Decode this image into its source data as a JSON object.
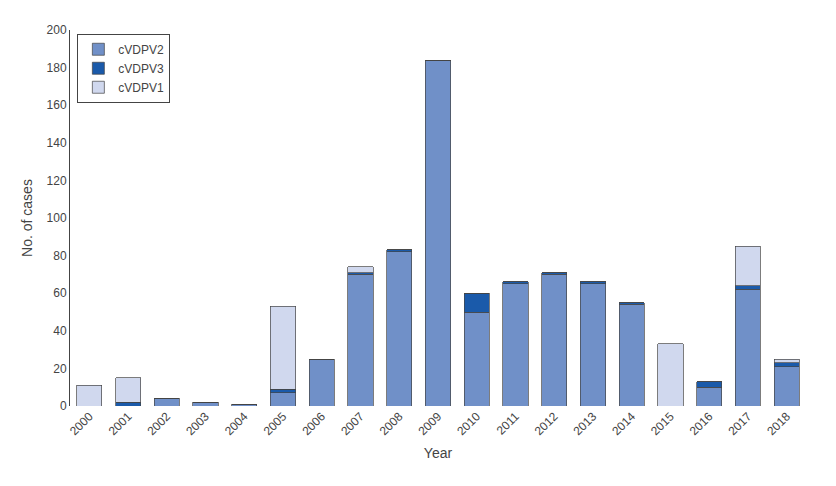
{
  "chart_data": {
    "type": "bar",
    "stacked": true,
    "xlabel": "Year",
    "ylabel": "No. of cases",
    "categories": [
      "2000",
      "2001",
      "2002",
      "2003",
      "2004",
      "2005",
      "2006",
      "2007",
      "2008",
      "2009",
      "2010",
      "2011",
      "2012",
      "2013",
      "2014",
      "2015",
      "2016",
      "2017",
      "2018"
    ],
    "series": [
      {
        "name": "cVDPV2",
        "color": "#7090c8",
        "values": [
          0,
          0,
          4,
          2,
          1,
          7,
          25,
          70,
          82,
          184,
          50,
          65,
          70,
          65,
          54,
          0,
          10,
          62,
          21
        ]
      },
      {
        "name": "cVDPV3",
        "color": "#1a5aaa",
        "values": [
          0,
          2,
          0,
          0,
          0,
          2,
          0,
          1,
          1,
          0,
          10,
          1,
          1,
          1,
          1,
          0,
          3,
          2,
          2
        ]
      },
      {
        "name": "cVDPV1",
        "color": "#d0d8ee",
        "values": [
          11,
          13,
          0,
          0,
          0,
          44,
          0,
          3,
          0,
          0,
          0,
          0,
          0,
          0,
          0,
          33,
          0,
          21,
          2
        ]
      }
    ],
    "ylim": [
      0,
      200
    ],
    "yticks": [
      0,
      20,
      40,
      60,
      80,
      100,
      120,
      140,
      160,
      180,
      200
    ],
    "grid": false,
    "legend": "upper left"
  }
}
